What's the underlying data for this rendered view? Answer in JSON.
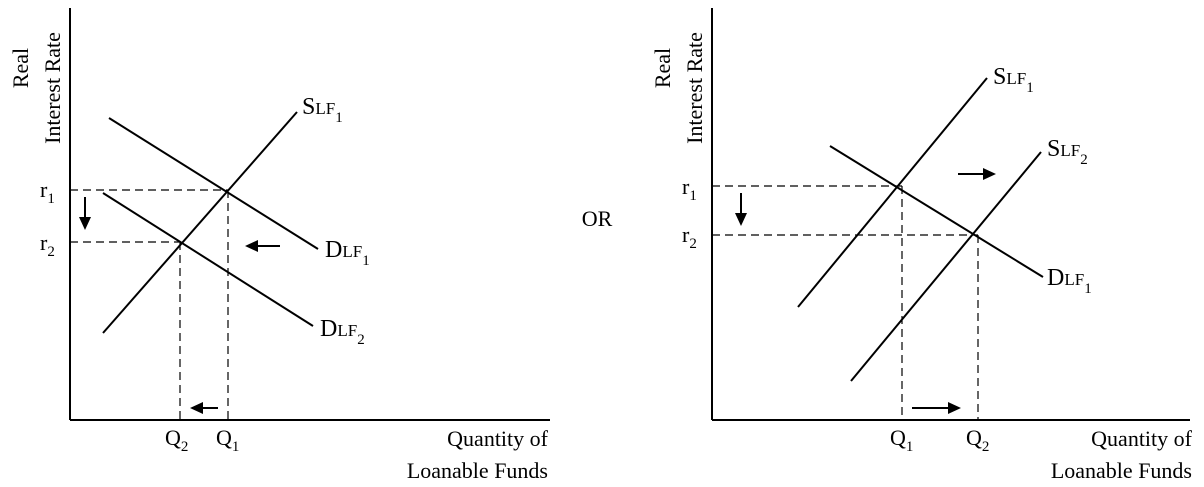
{
  "separator": "OR",
  "left": {
    "y_axis_label": [
      "Real",
      "Interest Rate"
    ],
    "x_axis_label": [
      "Quantity of",
      "Loanable Funds"
    ],
    "r1": {
      "main": "r",
      "sub": "1"
    },
    "r2": {
      "main": "r",
      "sub": "2"
    },
    "q2": {
      "main": "Q",
      "sub": "2"
    },
    "q1": {
      "main": "Q",
      "sub": "1"
    },
    "supply1": {
      "main": "S",
      "small": "LF",
      "sub": "1"
    },
    "demand1": {
      "main": "D",
      "small": "LF",
      "sub": "1"
    },
    "demand2": {
      "main": "D",
      "small": "LF",
      "sub": "2"
    }
  },
  "right": {
    "y_axis_label": [
      "Real",
      "Interest Rate"
    ],
    "x_axis_label": [
      "Quantity of",
      "Loanable Funds"
    ],
    "r1": {
      "main": "r",
      "sub": "1"
    },
    "r2": {
      "main": "r",
      "sub": "2"
    },
    "q1": {
      "main": "Q",
      "sub": "1"
    },
    "q2": {
      "main": "Q",
      "sub": "2"
    },
    "supply1": {
      "main": "S",
      "small": "LF",
      "sub": "1"
    },
    "supply2": {
      "main": "S",
      "small": "LF",
      "sub": "2"
    },
    "demand1": {
      "main": "D",
      "small": "LF",
      "sub": "1"
    }
  }
}
